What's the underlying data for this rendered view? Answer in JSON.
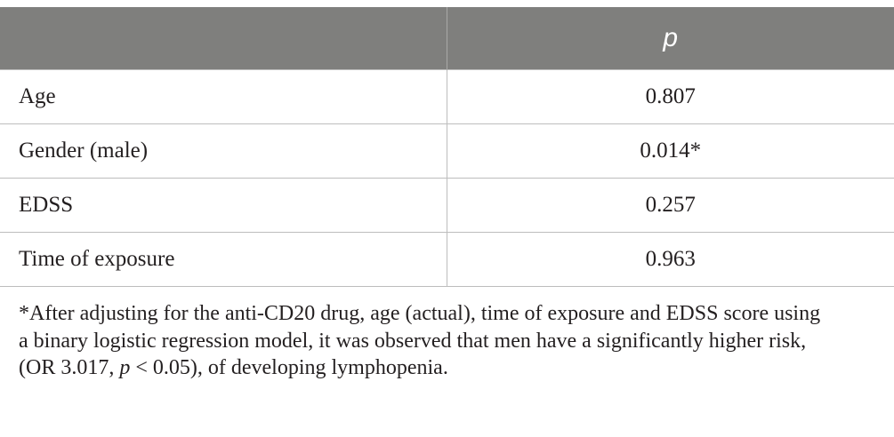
{
  "table": {
    "header": {
      "col1": "",
      "col2": "p"
    },
    "rows": [
      {
        "label": "Age",
        "value": "0.807"
      },
      {
        "label": "Gender (male)",
        "value": "0.014*"
      },
      {
        "label": "EDSS",
        "value": "0.257"
      },
      {
        "label": "Time of exposure",
        "value": "0.963"
      }
    ]
  },
  "footnote": {
    "line1": "*After adjusting for the anti-CD20 drug, age (actual), time of exposure and EDSS score using",
    "line2": "a binary logistic regression model, it was observed that men have a significantly higher risk,",
    "line3_a": "(OR 3.017, ",
    "line3_p": "p",
    "line3_b": " < 0.05), of developing lymphopenia."
  }
}
